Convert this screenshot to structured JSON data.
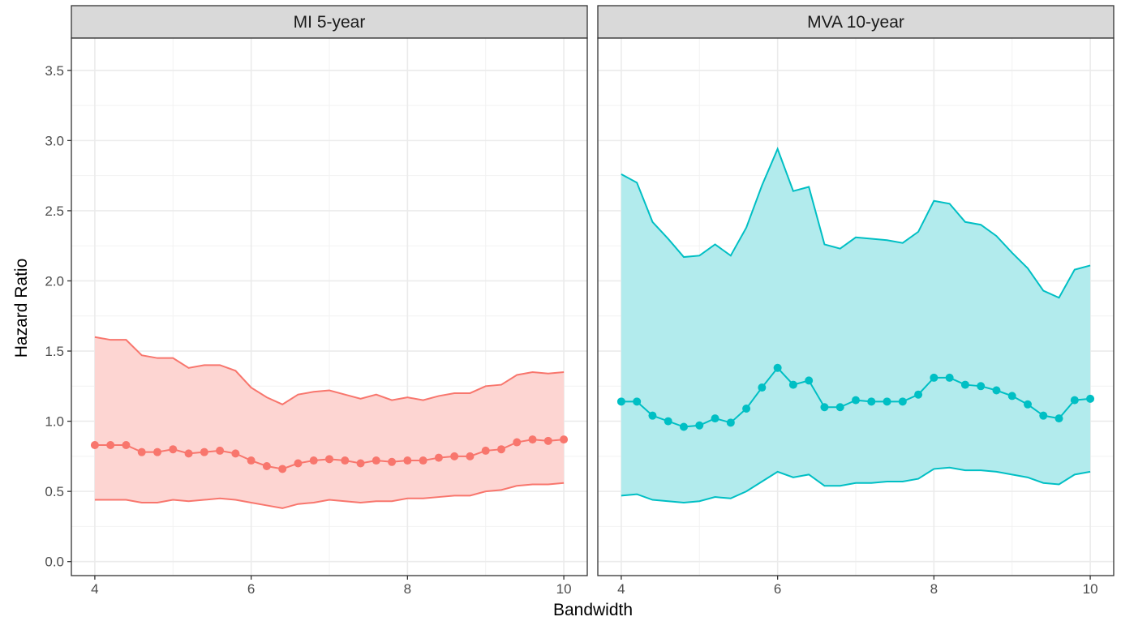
{
  "chart_data": {
    "type": "area",
    "xlabel": "Bandwidth",
    "ylabel": "Hazard Ratio",
    "ylim": [
      -0.1,
      3.73
    ],
    "y_ticks": [
      "0.0",
      "0.5",
      "1.0",
      "1.5",
      "2.0",
      "2.5",
      "3.0",
      "3.5"
    ],
    "x_ticks": [
      "4",
      "6",
      "8",
      "10"
    ],
    "grid": true,
    "legend": "none",
    "panels": [
      {
        "title": "MI 5-year",
        "color": "#F8766D",
        "fill": "#FDD5D2",
        "xlim": [
          3.7,
          10.3
        ],
        "x": [
          4.0,
          4.2,
          4.4,
          4.6,
          4.8,
          5.0,
          5.2,
          5.4,
          5.6,
          5.8,
          6.0,
          6.2,
          6.4,
          6.6,
          6.8,
          7.0,
          7.2,
          7.4,
          7.6,
          7.8,
          8.0,
          8.2,
          8.4,
          8.6,
          8.8,
          9.0,
          9.2,
          9.4,
          9.6,
          9.8,
          10.0
        ],
        "hr": [
          0.83,
          0.83,
          0.83,
          0.78,
          0.78,
          0.8,
          0.77,
          0.78,
          0.79,
          0.77,
          0.72,
          0.68,
          0.66,
          0.7,
          0.72,
          0.73,
          0.72,
          0.7,
          0.72,
          0.71,
          0.72,
          0.72,
          0.74,
          0.75,
          0.75,
          0.79,
          0.8,
          0.85,
          0.87,
          0.86,
          0.87
        ],
        "upper": [
          1.6,
          1.58,
          1.58,
          1.47,
          1.45,
          1.45,
          1.38,
          1.4,
          1.4,
          1.36,
          1.24,
          1.17,
          1.12,
          1.19,
          1.21,
          1.22,
          1.19,
          1.16,
          1.19,
          1.15,
          1.17,
          1.15,
          1.18,
          1.2,
          1.2,
          1.25,
          1.26,
          1.33,
          1.35,
          1.34,
          1.35
        ],
        "lower": [
          0.44,
          0.44,
          0.44,
          0.42,
          0.42,
          0.44,
          0.43,
          0.44,
          0.45,
          0.44,
          0.42,
          0.4,
          0.38,
          0.41,
          0.42,
          0.44,
          0.43,
          0.42,
          0.43,
          0.43,
          0.45,
          0.45,
          0.46,
          0.47,
          0.47,
          0.5,
          0.51,
          0.54,
          0.55,
          0.55,
          0.56
        ]
      },
      {
        "title": "MVA 10-year",
        "color": "#00BFC4",
        "fill": "#B2EBED",
        "xlim": [
          3.7,
          10.3
        ],
        "x": [
          4.0,
          4.2,
          4.4,
          4.6,
          4.8,
          5.0,
          5.2,
          5.4,
          5.6,
          5.8,
          6.0,
          6.2,
          6.4,
          6.6,
          6.8,
          7.0,
          7.2,
          7.4,
          7.6,
          7.8,
          8.0,
          8.2,
          8.4,
          8.6,
          8.8,
          9.0,
          9.2,
          9.4,
          9.6,
          9.8,
          10.0
        ],
        "hr": [
          1.14,
          1.14,
          1.04,
          1.0,
          0.96,
          0.97,
          1.02,
          0.99,
          1.09,
          1.24,
          1.38,
          1.26,
          1.29,
          1.1,
          1.1,
          1.15,
          1.14,
          1.14,
          1.14,
          1.19,
          1.31,
          1.31,
          1.26,
          1.25,
          1.22,
          1.18,
          1.12,
          1.04,
          1.02,
          1.15,
          1.16
        ],
        "upper": [
          2.76,
          2.7,
          2.42,
          2.3,
          2.17,
          2.18,
          2.26,
          2.18,
          2.38,
          2.68,
          2.94,
          2.64,
          2.67,
          2.26,
          2.23,
          2.31,
          2.3,
          2.29,
          2.27,
          2.35,
          2.57,
          2.55,
          2.42,
          2.4,
          2.32,
          2.2,
          2.09,
          1.93,
          1.88,
          2.08,
          2.11
        ],
        "lower": [
          0.47,
          0.48,
          0.44,
          0.43,
          0.42,
          0.43,
          0.46,
          0.45,
          0.5,
          0.57,
          0.64,
          0.6,
          0.62,
          0.54,
          0.54,
          0.56,
          0.56,
          0.57,
          0.57,
          0.59,
          0.66,
          0.67,
          0.65,
          0.65,
          0.64,
          0.62,
          0.6,
          0.56,
          0.55,
          0.62,
          0.64
        ]
      }
    ]
  }
}
